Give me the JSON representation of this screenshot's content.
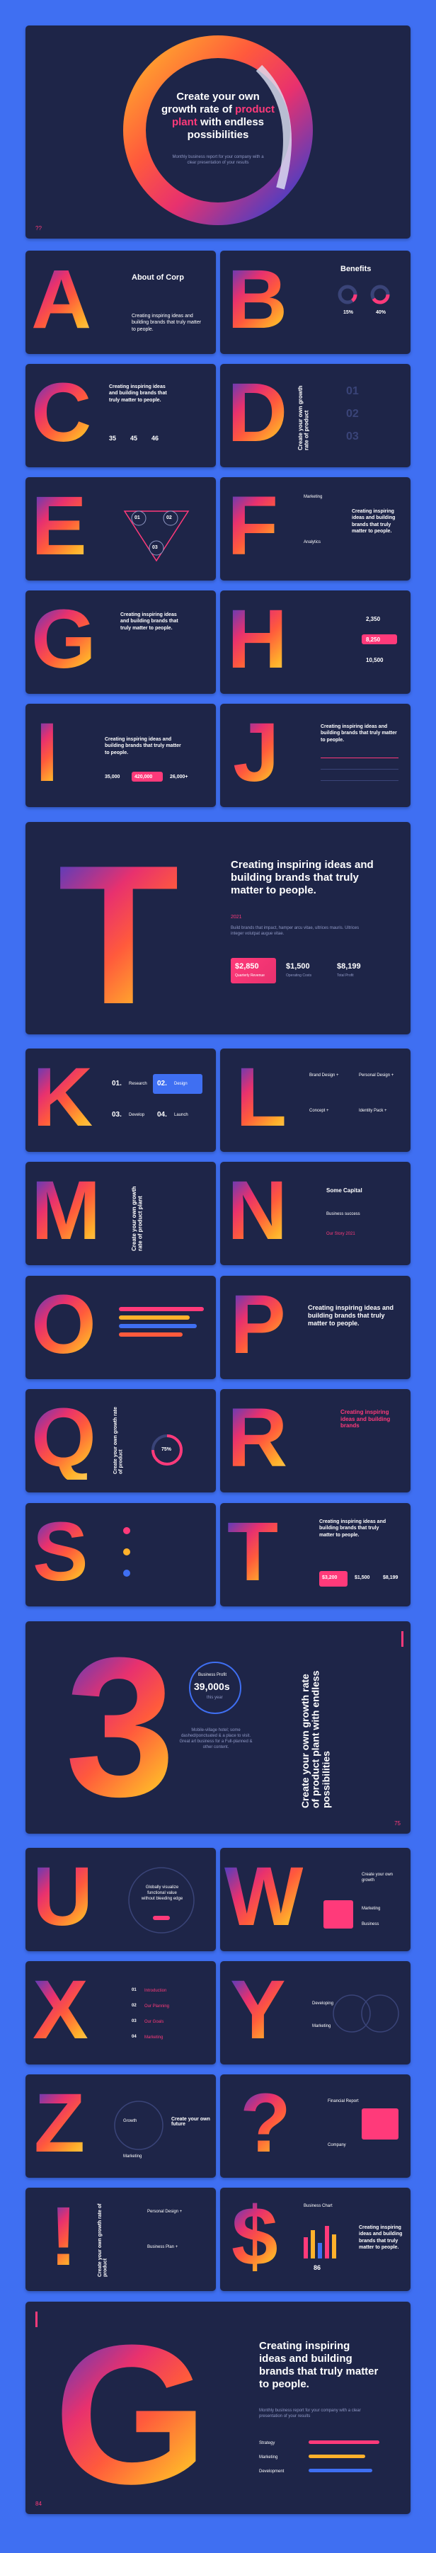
{
  "cover": {
    "pre": "Create your own growth rate of",
    "highlight": "product plant",
    "post": "with endless possibilities",
    "sub": "Monthly business report for your company with a clear presentation of your results",
    "page": "??"
  },
  "letters": {
    "A": "A",
    "B": "B",
    "C": "C",
    "D": "D",
    "E": "E",
    "F": "F",
    "G": "G",
    "H": "H",
    "I": "I",
    "J": "J",
    "T": "T",
    "K": "K",
    "L": "L",
    "M": "M",
    "N": "N",
    "O": "O",
    "P": "P",
    "Q": "Q",
    "R": "R",
    "S": "S",
    "T2": "T",
    "three": "3",
    "U": "U",
    "W": "W",
    "X": "X",
    "Y": "Y",
    "Z": "Z",
    "question": "?",
    "excl": "!",
    "dollar": "$",
    "G2": "G"
  },
  "a_slide": {
    "title": "About of Corp",
    "body": "Creating inspiring ideas and building brands that truly matter to people."
  },
  "b_slide": {
    "title": "Benefits",
    "v1": "15%",
    "v2": "40%"
  },
  "c_slide": {
    "body": "Creating inspiring ideas and building brands that truly matter to people.",
    "n1": "35",
    "n2": "45",
    "n3": "46"
  },
  "d_slide": {
    "vert": "Create your own growth rate of product",
    "n1": "01",
    "n2": "02",
    "n3": "03"
  },
  "e_slide": {
    "n1": "01",
    "n2": "02",
    "n3": "03"
  },
  "f_slide": {
    "body": "Creating inspiring ideas and building brands that truly matter to people.",
    "l1": "Marketing",
    "l2": "Analytics"
  },
  "g_slide": {
    "body": "Creating inspiring ideas and building brands that truly matter to people."
  },
  "h_slide": {
    "v1": "2,350",
    "v2": "8,250",
    "v3": "10,500"
  },
  "i_slide": {
    "body": "Creating inspiring ideas and building brands that truly matter to people.",
    "v1": "35,000",
    "v2": "420,000",
    "v3": "26,000+"
  },
  "j_slide": {
    "body": "Creating inspiring ideas and building brands that truly matter to people."
  },
  "t_slide": {
    "body": "Creating inspiring ideas and building brands that truly matter to people.",
    "tag": "2021",
    "sub": "Build brands that impact, hamper arcu vitae, ultrices mauris. Ultrices integer volutpat augue vitae.",
    "v1": "$2,850",
    "c1": "Quarterly Revenue",
    "v2": "$1,500",
    "c2": "Operating Costs",
    "v3": "$8,199",
    "c3": "Total Profit"
  },
  "k_slide": {
    "n1": "01.",
    "n2": "02.",
    "n3": "03.",
    "n4": "04.",
    "l1": "Research",
    "l2": "Design",
    "l3": "Develop",
    "l4": "Launch"
  },
  "l_slide": {
    "a": "Brand Design +",
    "b": "Personal Design +",
    "c": "Concept +",
    "d": "Identity Pack +"
  },
  "m_slide": {
    "vert": "Create your own growth rate of product plant"
  },
  "n_slide": {
    "title": "Some Capital",
    "sub": "Business success",
    "v": "Our Story 2021"
  },
  "p_slide": {
    "body": "Creating inspiring ideas and building brands that truly matter to people."
  },
  "q_slide": {
    "vert": "Create your own growth rate of product",
    "pct": "75%"
  },
  "r_slide": {
    "body": "Creating inspiring ideas and building brands"
  },
  "t2_slide": {
    "body": "Creating inspiring ideas and building brands that truly matter to people.",
    "v1": "$3,200",
    "v2": "$1,500",
    "v3": "$8,199"
  },
  "three_slide": {
    "label": "Business Profit",
    "value": "39,000s",
    "unit": "this year",
    "vert": "Create your own growth rate of product plant with endless possibilities",
    "body": "Mobile-village hotel; some dashed/ponctuated & a place to visit. Great art business for a Full-planned & other content.",
    "page": "75"
  },
  "u_slide": {
    "title": "Globally visualize functional value without bleeding edge"
  },
  "w_slide": {
    "title": "Create your own growth",
    "l1": "Marketing",
    "l2": "Business"
  },
  "x_slide": {
    "n1": "01",
    "n2": "02",
    "n3": "03",
    "n4": "04",
    "l1": "Introduction",
    "l2": "Our Planning",
    "l3": "Our Goals",
    "l4": "Marketing"
  },
  "y_slide": {
    "l1": "Developing",
    "l2": "Marketing"
  },
  "z_slide": {
    "title": "Create your own future",
    "l1": "Growth",
    "l2": "Marketing"
  },
  "q2_slide": {
    "l1": "Financial Report",
    "l2": "Company"
  },
  "ex_slide": {
    "vert": "Create your own growth rate of product",
    "a": "Personal Design +",
    "b": "Business Plan +"
  },
  "dollar_slide": {
    "body": "Creating inspiring ideas and building brands that truly matter to people.",
    "v": "86",
    "title": "Business Chart"
  },
  "last_slide": {
    "body": "Creating inspiring ideas and building brands that truly matter to people.",
    "sub": "Monthly business report for your company with a clear presentation of your results",
    "l1": "Strategy",
    "l2": "Marketing",
    "l3": "Development",
    "page": "84"
  }
}
